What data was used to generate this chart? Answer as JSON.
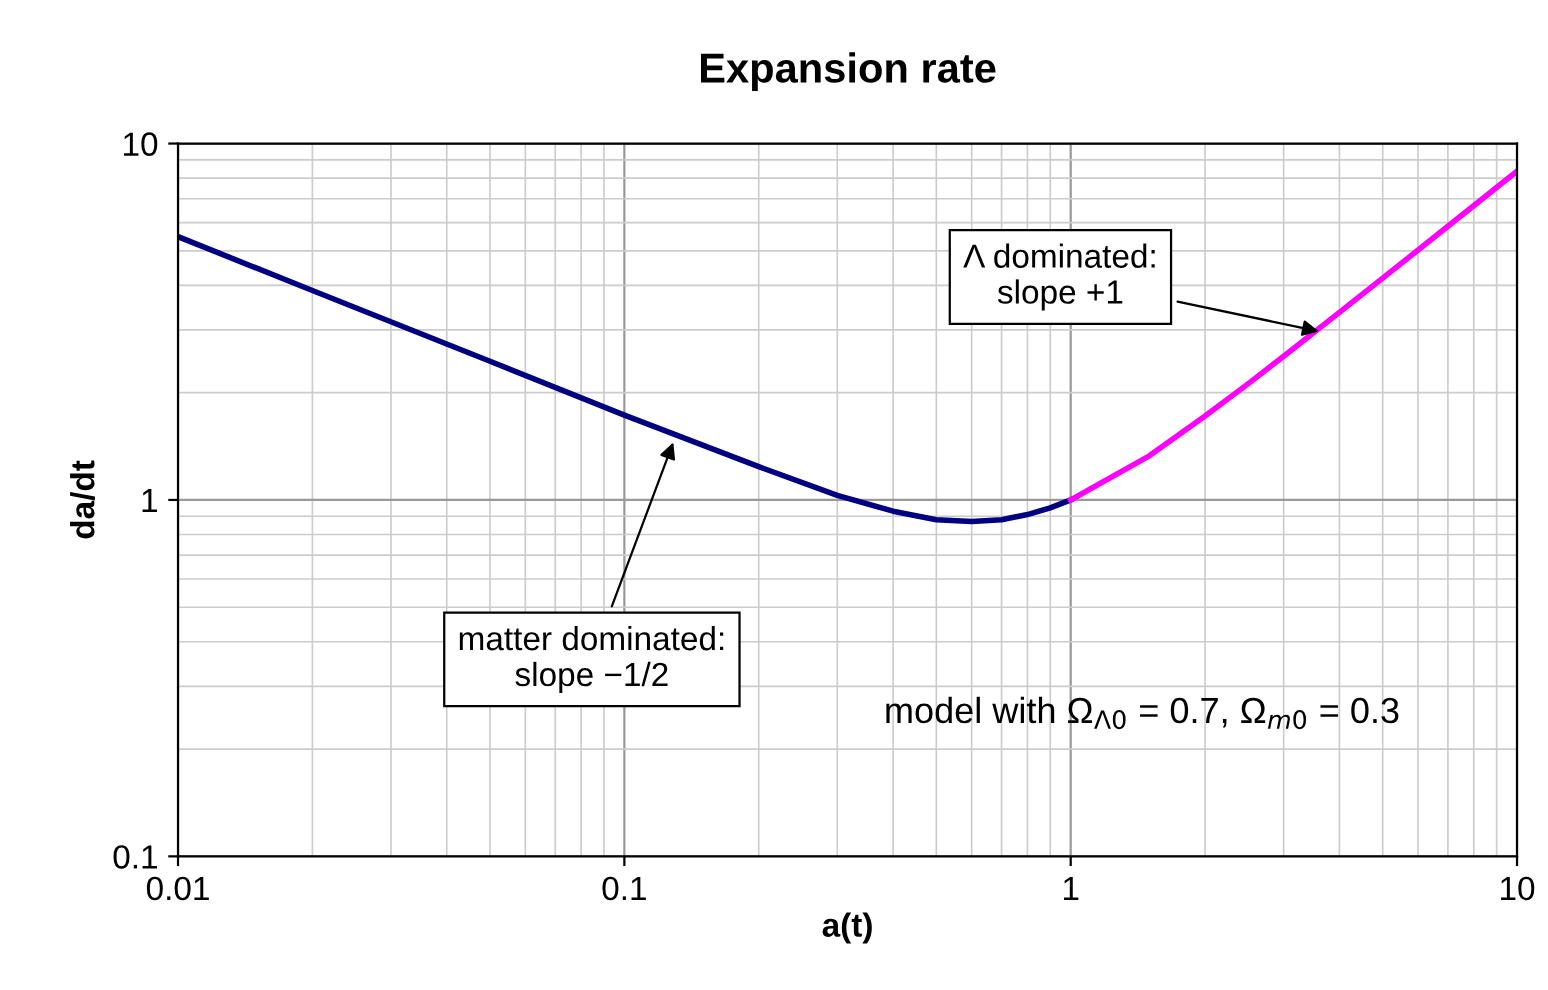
{
  "chart_data": {
    "type": "line",
    "title": "Expansion rate",
    "xlabel": "a(t)",
    "ylabel": "da/dt",
    "log": "xy",
    "grid": true,
    "marker": "none",
    "line_style": "solid",
    "xlim": [
      0.01,
      10
    ],
    "ylim": [
      0.1,
      10
    ],
    "xticks": [
      0.01,
      0.1,
      1,
      10
    ],
    "yticks": [
      0.1,
      1,
      10
    ],
    "series": [
      {
        "color": "#000080",
        "x": [
          0.01,
          0.02,
          0.05,
          0.1,
          0.2,
          0.3,
          0.4,
          0.5,
          0.6,
          0.7,
          0.8,
          0.9,
          1
        ],
        "values": [
          5.48,
          3.87,
          2.45,
          1.73,
          1.24,
          1.03,
          0.93,
          0.88,
          0.87,
          0.88,
          0.91,
          0.95,
          1
        ]
      },
      {
        "color": "#ff00ff",
        "x": [
          1,
          1.5,
          2,
          2.5,
          3,
          4,
          5,
          7,
          10
        ],
        "values": [
          1,
          1.33,
          1.72,
          2.12,
          2.53,
          3.36,
          4.19,
          5.86,
          8.37
        ]
      }
    ],
    "annotations": [
      {
        "text": "Λ dominated:\nslope +1",
        "x": 3.7,
        "y": 2.95
      },
      {
        "text": "matter dominated:\nslope −1/2",
        "x": 0.13,
        "y": 1.5
      },
      "model with Ω$_{Λ0}$ = 0.7, Ω$_{m0}$ = 0.3"
    ]
  }
}
